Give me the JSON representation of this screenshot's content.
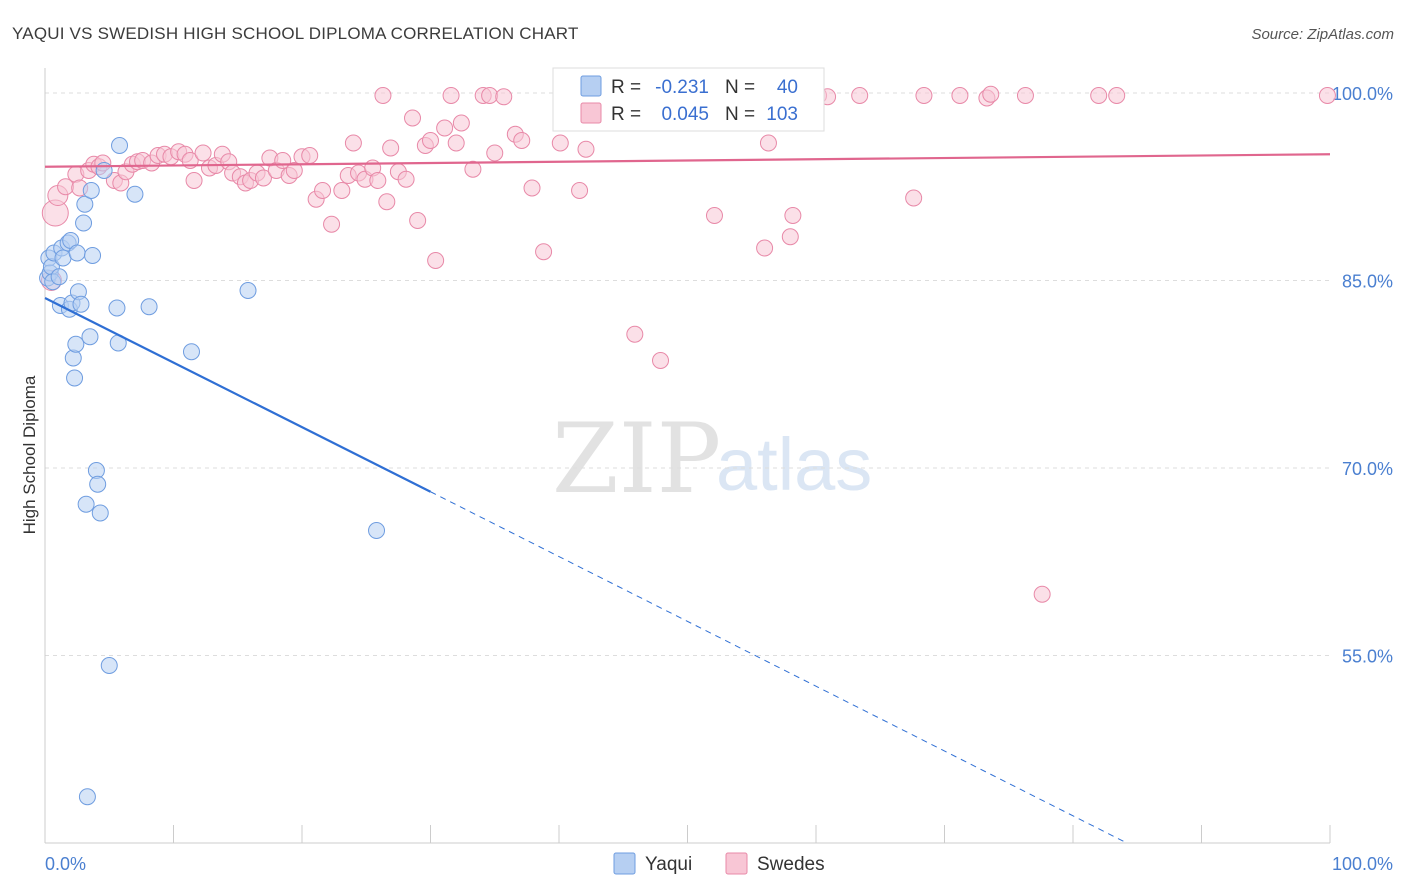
{
  "chart_data": {
    "type": "scatter",
    "title": "YAQUI VS SWEDISH HIGH SCHOOL DIPLOMA CORRELATION CHART",
    "source": "Source: ZipAtlas.com",
    "ylabel": "High School Diploma",
    "xlim": [
      0,
      100
    ],
    "ylim": [
      40,
      102
    ],
    "x_ticks": [
      {
        "value": 0,
        "label": "0.0%"
      },
      {
        "value": 100,
        "label": "100.0%"
      }
    ],
    "y_ticks": [
      {
        "value": 100,
        "label": "100.0%"
      },
      {
        "value": 85,
        "label": "85.0%"
      },
      {
        "value": 70,
        "label": "70.0%"
      },
      {
        "value": 55,
        "label": "55.0%"
      }
    ],
    "watermark": {
      "zip": "ZIP",
      "atlas": "atlas"
    },
    "legend_stats": [
      {
        "name": "Yaqui",
        "r_label": "R =",
        "r_value": "-0.231",
        "n_label": "N =",
        "n_value": "40"
      },
      {
        "name": "Swedes",
        "r_label": "R =",
        "r_value": "0.045",
        "n_label": "N =",
        "n_value": "103"
      }
    ],
    "series": [
      {
        "name": "Yaqui",
        "color": "#6f9de0",
        "fill": "#b6cff2",
        "trend": {
          "x1": 0,
          "y1": 83.6,
          "x2": 30,
          "y2": 68.1,
          "dash_to_x": 84,
          "dash_to_y": 40.1
        },
        "points": [
          [
            0.2,
            85.2
          ],
          [
            0.3,
            86.8
          ],
          [
            0.4,
            85.6
          ],
          [
            0.5,
            86.1
          ],
          [
            0.6,
            84.9
          ],
          [
            0.7,
            87.2
          ],
          [
            1.1,
            85.3
          ],
          [
            1.2,
            83.0
          ],
          [
            1.3,
            87.6
          ],
          [
            1.4,
            86.8
          ],
          [
            1.8,
            88.0
          ],
          [
            1.9,
            82.7
          ],
          [
            2.0,
            88.2
          ],
          [
            2.1,
            83.2
          ],
          [
            2.2,
            78.8
          ],
          [
            2.3,
            77.2
          ],
          [
            2.4,
            79.9
          ],
          [
            2.5,
            87.2
          ],
          [
            2.6,
            84.1
          ],
          [
            2.8,
            83.1
          ],
          [
            3.0,
            89.6
          ],
          [
            3.1,
            91.1
          ],
          [
            3.2,
            67.1
          ],
          [
            3.3,
            43.7
          ],
          [
            3.5,
            80.5
          ],
          [
            3.6,
            92.2
          ],
          [
            3.7,
            87.0
          ],
          [
            4.0,
            69.8
          ],
          [
            4.1,
            68.7
          ],
          [
            4.3,
            66.4
          ],
          [
            4.6,
            93.8
          ],
          [
            5.0,
            54.2
          ],
          [
            5.6,
            82.8
          ],
          [
            5.7,
            80.0
          ],
          [
            5.8,
            95.8
          ],
          [
            7.0,
            91.9
          ],
          [
            8.1,
            82.9
          ],
          [
            11.4,
            79.3
          ],
          [
            15.8,
            84.2
          ],
          [
            25.8,
            65.0
          ]
        ]
      },
      {
        "name": "Swedes",
        "color": "#e889a8",
        "fill": "#f8c6d5",
        "trend": {
          "x1": 0,
          "y1": 94.1,
          "x2": 100,
          "y2": 95.1
        },
        "points": [
          [
            0.5,
            85.0
          ],
          [
            0.8,
            90.4
          ],
          [
            1.0,
            91.8
          ],
          [
            1.6,
            92.5
          ],
          [
            2.4,
            93.5
          ],
          [
            2.7,
            92.4
          ],
          [
            3.4,
            93.8
          ],
          [
            3.8,
            94.3
          ],
          [
            4.2,
            94.1
          ],
          [
            4.5,
            94.4
          ],
          [
            5.4,
            93.0
          ],
          [
            5.9,
            92.8
          ],
          [
            6.3,
            93.7
          ],
          [
            6.8,
            94.3
          ],
          [
            7.2,
            94.5
          ],
          [
            7.6,
            94.6
          ],
          [
            8.3,
            94.4
          ],
          [
            8.8,
            95.0
          ],
          [
            9.3,
            95.1
          ],
          [
            9.8,
            94.9
          ],
          [
            10.4,
            95.3
          ],
          [
            10.9,
            95.1
          ],
          [
            11.3,
            94.6
          ],
          [
            11.6,
            93.0
          ],
          [
            12.3,
            95.2
          ],
          [
            12.8,
            94.0
          ],
          [
            13.3,
            94.2
          ],
          [
            13.8,
            95.1
          ],
          [
            14.3,
            94.5
          ],
          [
            14.6,
            93.6
          ],
          [
            15.2,
            93.3
          ],
          [
            15.6,
            92.8
          ],
          [
            16.0,
            93.0
          ],
          [
            16.5,
            93.6
          ],
          [
            17.0,
            93.2
          ],
          [
            17.5,
            94.8
          ],
          [
            18.0,
            93.8
          ],
          [
            18.5,
            94.6
          ],
          [
            19.0,
            93.4
          ],
          [
            19.4,
            93.8
          ],
          [
            20.0,
            94.9
          ],
          [
            20.6,
            95.0
          ],
          [
            21.1,
            91.5
          ],
          [
            21.6,
            92.2
          ],
          [
            22.3,
            89.5
          ],
          [
            23.1,
            92.2
          ],
          [
            23.6,
            93.4
          ],
          [
            24.0,
            96.0
          ],
          [
            24.4,
            93.6
          ],
          [
            24.9,
            93.1
          ],
          [
            25.5,
            94.0
          ],
          [
            25.9,
            93.0
          ],
          [
            26.3,
            99.8
          ],
          [
            26.6,
            91.3
          ],
          [
            26.9,
            95.6
          ],
          [
            27.5,
            93.7
          ],
          [
            28.1,
            93.1
          ],
          [
            28.6,
            98.0
          ],
          [
            29.0,
            89.8
          ],
          [
            29.6,
            95.8
          ],
          [
            30.0,
            96.2
          ],
          [
            30.4,
            86.6
          ],
          [
            31.1,
            97.2
          ],
          [
            31.6,
            99.8
          ],
          [
            32.0,
            96.0
          ],
          [
            32.4,
            97.6
          ],
          [
            33.3,
            93.9
          ],
          [
            34.1,
            99.8
          ],
          [
            34.6,
            99.8
          ],
          [
            35.0,
            95.2
          ],
          [
            35.7,
            99.7
          ],
          [
            36.6,
            96.7
          ],
          [
            37.1,
            96.2
          ],
          [
            37.9,
            92.4
          ],
          [
            38.8,
            87.3
          ],
          [
            40.1,
            96.0
          ],
          [
            41.3,
            99.8
          ],
          [
            41.6,
            92.2
          ],
          [
            42.1,
            95.5
          ],
          [
            43.8,
            99.8
          ],
          [
            45.9,
            80.7
          ],
          [
            46.7,
            99.7
          ],
          [
            47.4,
            99.8
          ],
          [
            47.9,
            78.6
          ],
          [
            52.1,
            90.2
          ],
          [
            52.6,
            99.8
          ],
          [
            56.0,
            87.6
          ],
          [
            56.3,
            96.0
          ],
          [
            58.0,
            88.5
          ],
          [
            58.2,
            90.2
          ],
          [
            60.2,
            99.8
          ],
          [
            60.9,
            99.7
          ],
          [
            63.4,
            99.8
          ],
          [
            67.6,
            91.6
          ],
          [
            68.4,
            99.8
          ],
          [
            71.2,
            99.8
          ],
          [
            73.3,
            99.6
          ],
          [
            73.6,
            99.9
          ],
          [
            76.3,
            99.8
          ],
          [
            77.6,
            59.9
          ],
          [
            82.0,
            99.8
          ],
          [
            83.4,
            99.8
          ],
          [
            99.8,
            99.8
          ]
        ]
      }
    ]
  }
}
